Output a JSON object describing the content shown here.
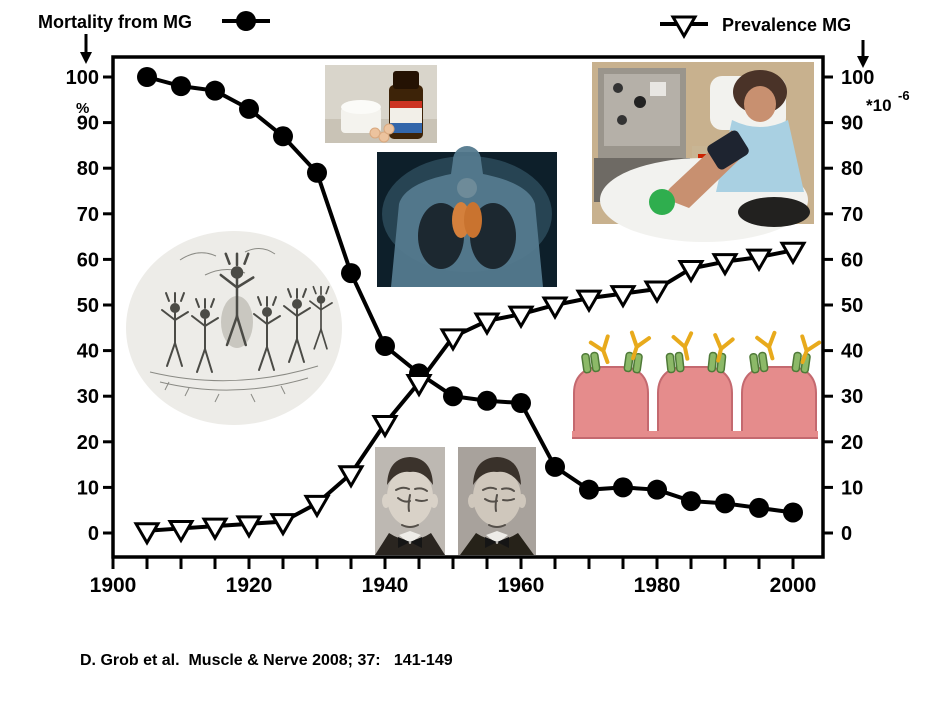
{
  "legend": {
    "mortality": {
      "label": "Mortality from MG",
      "marker": "filled-circle"
    },
    "prevalence": {
      "label": "Prevalence MG",
      "marker": "open-triangle-down"
    }
  },
  "axes": {
    "left": {
      "unit": "%",
      "ticks": [
        0,
        10,
        20,
        30,
        40,
        50,
        60,
        70,
        80,
        90,
        100
      ]
    },
    "right": {
      "unit_base": "*10",
      "unit_exponent": "-6",
      "ticks": [
        0,
        10,
        20,
        30,
        40,
        50,
        60,
        70,
        80,
        90,
        100
      ]
    },
    "x": {
      "range": [
        1900,
        2000
      ],
      "tick_step_years": 5,
      "tick_years_labeled": [
        1900,
        1920,
        1940,
        1960,
        1980,
        2000
      ]
    }
  },
  "caption": "D. Grob et al.  Muscle & Nerve 2008; 37:   141-149",
  "chart_data": {
    "type": "line",
    "x": [
      1905,
      1910,
      1915,
      1920,
      1925,
      1930,
      1935,
      1940,
      1945,
      1950,
      1955,
      1960,
      1965,
      1970,
      1975,
      1980,
      1985,
      1990,
      1995,
      2000
    ],
    "series": [
      {
        "name": "Mortality from MG",
        "axis": "left (%)",
        "marker": "filled-circle",
        "values": [
          100,
          98,
          97,
          93,
          87,
          79,
          57,
          41,
          35,
          30,
          29,
          28.5,
          14.5,
          9.5,
          10,
          9.5,
          7,
          6.5,
          5.5,
          4.5
        ]
      },
      {
        "name": "Prevalence MG",
        "axis": "right (*10^-6)",
        "marker": "open-triangle-down",
        "values": [
          0.5,
          1,
          1.5,
          2,
          2.5,
          6.5,
          13,
          24,
          33,
          43,
          46.5,
          48,
          50,
          51.5,
          52.5,
          53.5,
          58,
          59.5,
          60.5,
          62
        ]
      }
    ],
    "xlim": [
      1900,
      2005
    ],
    "ylim": [
      0,
      100
    ],
    "grid": false,
    "legend_position": "top-corners",
    "title": ""
  },
  "embedded_images": [
    {
      "name": "medicine-bottle-photo",
      "description": "Brown medicine bottle with label, white cup and pills (drug therapy)"
    },
    {
      "name": "thymus-lungs-illustration",
      "description": "Blue torso with dark lungs and orange thymus gland"
    },
    {
      "name": "plasmapheresis-photo",
      "description": "Woman in hospital chair receiving plasma exchange, holding green ball"
    },
    {
      "name": "tribal-dance-engraving",
      "description": "Oval black-and-white engraving of dancing figures"
    },
    {
      "name": "ptosis-portraits-photo",
      "description": "Two vintage portraits of a man with drooping eyelids"
    },
    {
      "name": "neuromuscular-junction-diagram",
      "description": "Pink muscle endplate folds with green acetylcholine receptors and yellow antibodies"
    }
  ],
  "colors": {
    "ink": "#000000",
    "membrane_pink": "#e58c8c",
    "receptor_green": "#8cb968",
    "antibody_yellow": "#e8aa1c",
    "scrub_blue": "#a9d0e2",
    "ball_green": "#2fae4e",
    "thymus_orange": "#d4803c"
  }
}
